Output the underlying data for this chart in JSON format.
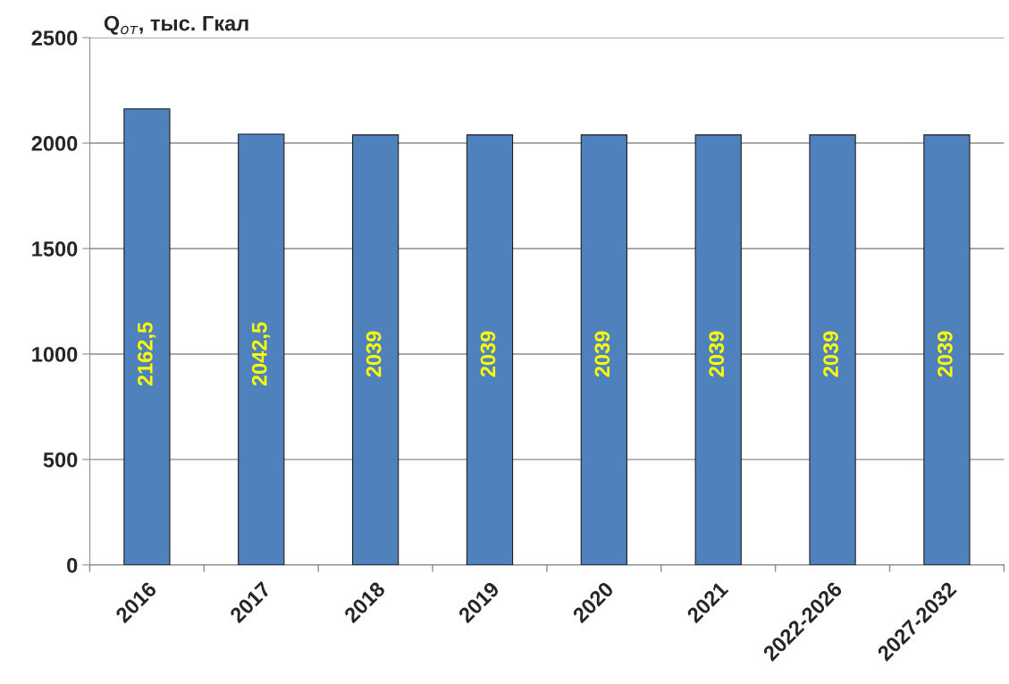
{
  "chart_data": {
    "type": "bar",
    "ylabel": "Q$_{от}$, тыс. Гкал",
    "categories": [
      "2016",
      "2017",
      "2018",
      "2019",
      "2020",
      "2021",
      "2022-2026",
      "2027-2032"
    ],
    "values": [
      2162.5,
      2042.5,
      2039,
      2039,
      2039,
      2039,
      2039,
      2039
    ],
    "value_labels": [
      "2162,5",
      "2042,5",
      "2039",
      "2039",
      "2039",
      "2039",
      "2039",
      "2039"
    ],
    "color": "#4f81bd",
    "ylim": [
      0,
      2500
    ],
    "yticks": [
      0,
      500,
      1000,
      1500,
      2000,
      2500
    ],
    "grid": "y"
  }
}
